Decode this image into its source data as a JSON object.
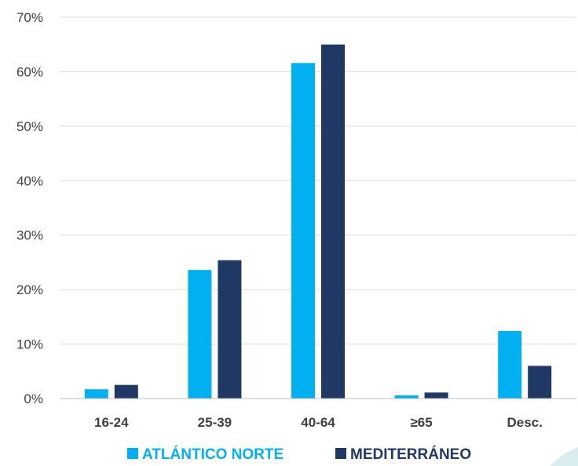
{
  "chart_data": {
    "type": "bar",
    "categories": [
      "16-24",
      "25-39",
      "40-64",
      "≥65",
      "Desc."
    ],
    "series": [
      {
        "name": "ATLÁNTICO NORTE",
        "color": "#00B0F0",
        "values": [
          1.7,
          23.6,
          61.6,
          0.6,
          12.4
        ]
      },
      {
        "name": "MEDITERRÁNEO",
        "color": "#203864",
        "values": [
          2.5,
          25.4,
          65.0,
          1.1,
          6.0
        ]
      }
    ],
    "yticks": [
      "0%",
      "10%",
      "20%",
      "30%",
      "40%",
      "50%",
      "60%",
      "70%"
    ],
    "ylim": [
      0,
      70
    ],
    "grid": true,
    "legend_position": "bottom",
    "title": "",
    "xlabel": "",
    "ylabel": ""
  }
}
